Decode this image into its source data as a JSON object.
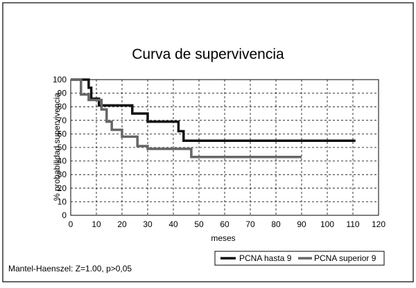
{
  "chart_data": {
    "type": "line",
    "title": "Curva de supervivencia",
    "xlabel": "meses",
    "ylabel": "% probabilidad supervivencia",
    "xlim": [
      0,
      120
    ],
    "ylim": [
      0,
      100
    ],
    "xticks": [
      "0",
      "10",
      "20",
      "30",
      "40",
      "50",
      "60",
      "70",
      "80",
      "90",
      "100",
      "110",
      "120"
    ],
    "yticks": [
      "0",
      "10",
      "20",
      "30",
      "40",
      "50",
      "60",
      "70",
      "80",
      "90",
      "100"
    ],
    "grid": true,
    "legend_position": "bottom-right",
    "series": [
      {
        "name": "PCNA hasta 9",
        "color": "#111111",
        "style": "step",
        "x": [
          0,
          6,
          7,
          8,
          11,
          24,
          30,
          42,
          44,
          111
        ],
        "y": [
          100,
          100,
          94,
          86,
          81,
          75,
          69,
          62,
          55,
          55
        ]
      },
      {
        "name": "PCNA superior 9",
        "color": "#666666",
        "style": "step",
        "x": [
          0,
          4,
          7,
          12,
          14,
          16,
          20,
          26,
          30,
          47,
          90
        ],
        "y": [
          100,
          89,
          85,
          78,
          69,
          63,
          58,
          51,
          49,
          43,
          43
        ]
      }
    ],
    "annotation": "Mantel-Haenszel: Z=1.00, p>0,05"
  }
}
